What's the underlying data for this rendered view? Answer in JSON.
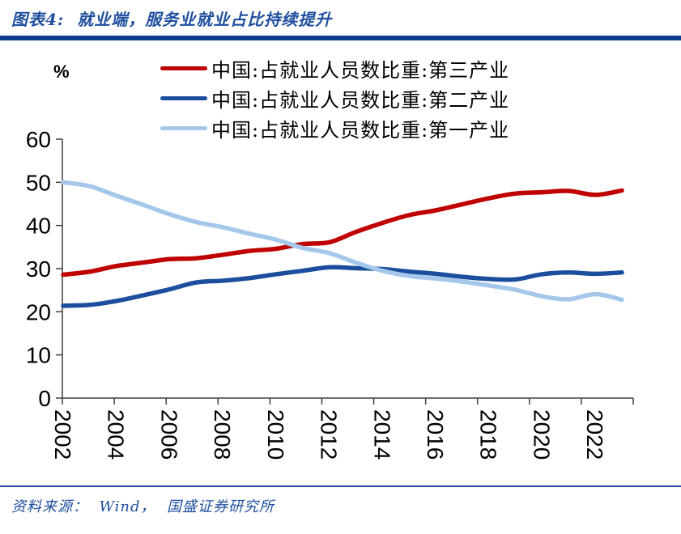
{
  "header": {
    "title": "图表4:  就业端，服务业就业占比持续提升"
  },
  "unit": "%",
  "legend": [
    {
      "label": "中国:占就业人员数比重:第三产业",
      "color": "#C00000"
    },
    {
      "label": "中国:占就业人员数比重:第二产业",
      "color": "#1B4F9E"
    },
    {
      "label": "中国:占就业人员数比重:第一产业",
      "color": "#A5C8EA"
    }
  ],
  "footer": {
    "source": "资料来源：  Wind，  国盛证券研究所"
  },
  "colors": {
    "accent_blue": "#1F4E9E",
    "header_bar": "#0B3B8C",
    "axis": "#3F3F3F",
    "tick_text": "#000000"
  },
  "chart_data": {
    "type": "line",
    "title": "图表4: 就业端，服务业就业占比持续提升",
    "ylabel": "%",
    "xlabel": "",
    "ylim": [
      0,
      60
    ],
    "y_ticks": [
      0,
      10,
      20,
      30,
      40,
      50,
      60
    ],
    "grid": false,
    "legend_position": "top",
    "x": [
      2002,
      2003,
      2004,
      2005,
      2006,
      2007,
      2008,
      2009,
      2010,
      2011,
      2012,
      2013,
      2014,
      2015,
      2016,
      2017,
      2018,
      2019,
      2020,
      2021,
      2022,
      2023
    ],
    "x_tick_labels": [
      "2002",
      "2004",
      "2006",
      "2008",
      "2010",
      "2012",
      "2014",
      "2016",
      "2018",
      "2020",
      "2022"
    ],
    "series": [
      {
        "name": "中国:占就业人员数比重:第三产业",
        "color": "#C00000",
        "values": [
          28.6,
          29.3,
          30.6,
          31.4,
          32.2,
          32.4,
          33.2,
          34.1,
          34.6,
          35.7,
          36.1,
          38.5,
          40.6,
          42.4,
          43.5,
          44.9,
          46.3,
          47.4,
          47.7,
          48.0,
          47.1,
          48.1
        ]
      },
      {
        "name": "中国:占就业人员数比重:第二产业",
        "color": "#1B4F9E",
        "values": [
          21.4,
          21.6,
          22.5,
          23.8,
          25.2,
          26.8,
          27.2,
          27.8,
          28.7,
          29.5,
          30.3,
          30.1,
          29.9,
          29.3,
          28.8,
          28.1,
          27.6,
          27.5,
          28.7,
          29.1,
          28.8,
          29.1
        ]
      },
      {
        "name": "中国:占就业人员数比重:第一产业",
        "color": "#A5C8EA",
        "values": [
          50.0,
          49.1,
          46.9,
          44.8,
          42.6,
          40.8,
          39.6,
          38.1,
          36.7,
          34.8,
          33.6,
          31.4,
          29.5,
          28.3,
          27.7,
          27.0,
          26.1,
          25.1,
          23.6,
          22.9,
          24.1,
          22.8
        ]
      }
    ]
  }
}
